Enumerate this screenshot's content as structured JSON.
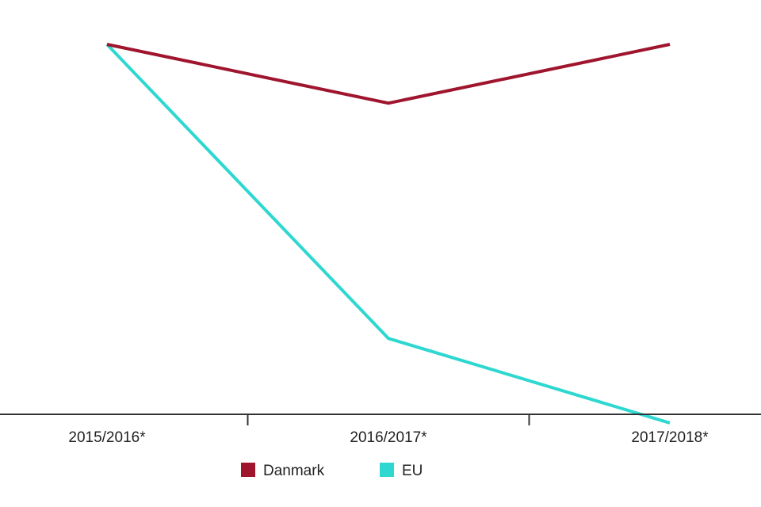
{
  "chart_data": {
    "type": "line",
    "title": "",
    "xlabel": "",
    "ylabel": "",
    "categories": [
      "2015/2016*",
      "2016/2017*",
      "2017/2018*"
    ],
    "ylim": [
      0,
      1.07
    ],
    "y_axis_visible": false,
    "grid": false,
    "legend_position": "bottom-center",
    "series": [
      {
        "name": "Danmark",
        "color": "#a0152e",
        "values": [
          1.0,
          0.84,
          1.0
        ]
      },
      {
        "name": "EU",
        "color": "#2ed8d0",
        "values": [
          1.0,
          0.2,
          -0.03
        ]
      }
    ]
  }
}
